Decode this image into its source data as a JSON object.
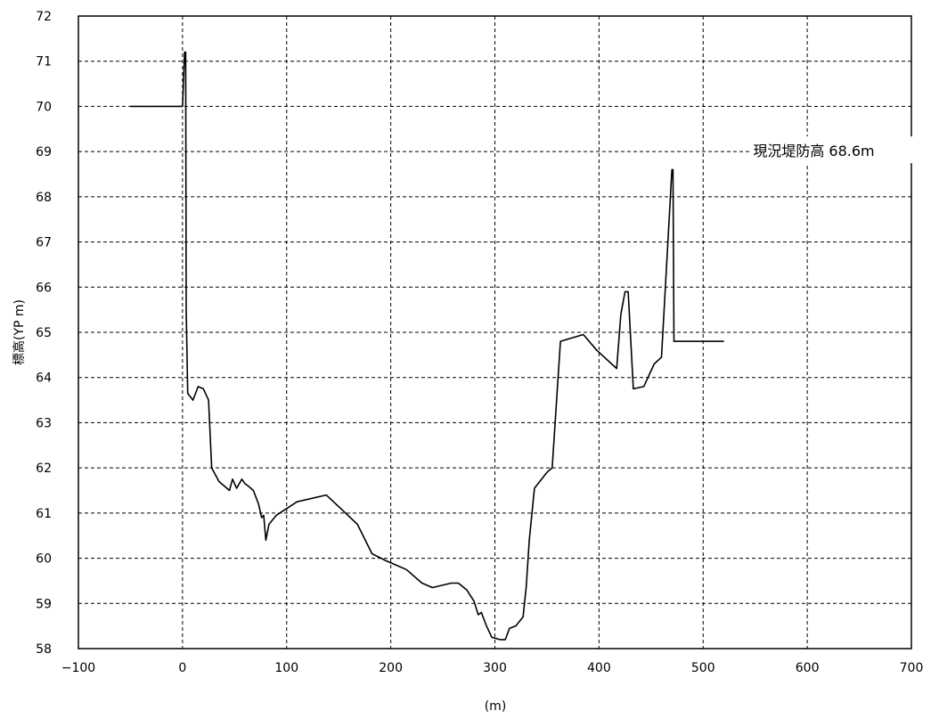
{
  "chart_data": {
    "type": "line",
    "title": "",
    "xlabel": "(m)",
    "ylabel": "標高(YP m)",
    "xlim": [
      -100,
      700
    ],
    "ylim": [
      58,
      72
    ],
    "xticks": [
      -100,
      0,
      100,
      200,
      300,
      400,
      500,
      600,
      700
    ],
    "yticks": [
      58,
      59,
      60,
      61,
      62,
      63,
      64,
      65,
      66,
      67,
      68,
      69,
      70,
      71,
      72
    ],
    "grid": "dashed",
    "series": [
      {
        "color": "#000000",
        "x": [
          -50,
          0,
          2,
          3,
          3.5,
          5,
          10,
          15,
          20,
          25,
          28,
          35,
          45,
          48,
          52,
          57,
          60,
          63,
          68,
          73,
          76,
          78,
          80,
          83,
          90,
          110,
          138,
          152,
          168,
          182,
          195,
          215,
          230,
          240,
          258,
          265,
          273,
          280,
          284,
          287,
          292,
          297,
          305,
          310,
          314,
          320,
          327,
          330,
          333,
          338,
          350,
          355,
          363,
          385,
          398,
          417,
          421,
          425,
          428,
          433,
          443,
          453,
          460,
          470,
          471,
          472,
          520
        ],
        "y": [
          70.0,
          70.0,
          71.2,
          71.2,
          65.5,
          63.65,
          63.5,
          63.8,
          63.75,
          63.5,
          62.0,
          61.7,
          61.5,
          61.75,
          61.55,
          61.75,
          61.65,
          61.6,
          61.5,
          61.2,
          60.9,
          60.95,
          60.4,
          60.75,
          60.95,
          61.25,
          61.4,
          61.1,
          60.75,
          60.1,
          59.95,
          59.75,
          59.45,
          59.35,
          59.45,
          59.45,
          59.3,
          59.05,
          58.75,
          58.8,
          58.5,
          58.25,
          58.2,
          58.2,
          58.45,
          58.5,
          58.7,
          59.35,
          60.4,
          61.55,
          61.9,
          62.0,
          64.8,
          64.95,
          64.6,
          64.2,
          65.4,
          65.9,
          65.9,
          63.75,
          63.8,
          64.3,
          64.45,
          68.6,
          68.6,
          64.8,
          64.8
        ]
      }
    ],
    "annotations": [
      {
        "text": "現況堤防高 68.6m",
        "x": 548,
        "y": 69.0
      }
    ]
  }
}
